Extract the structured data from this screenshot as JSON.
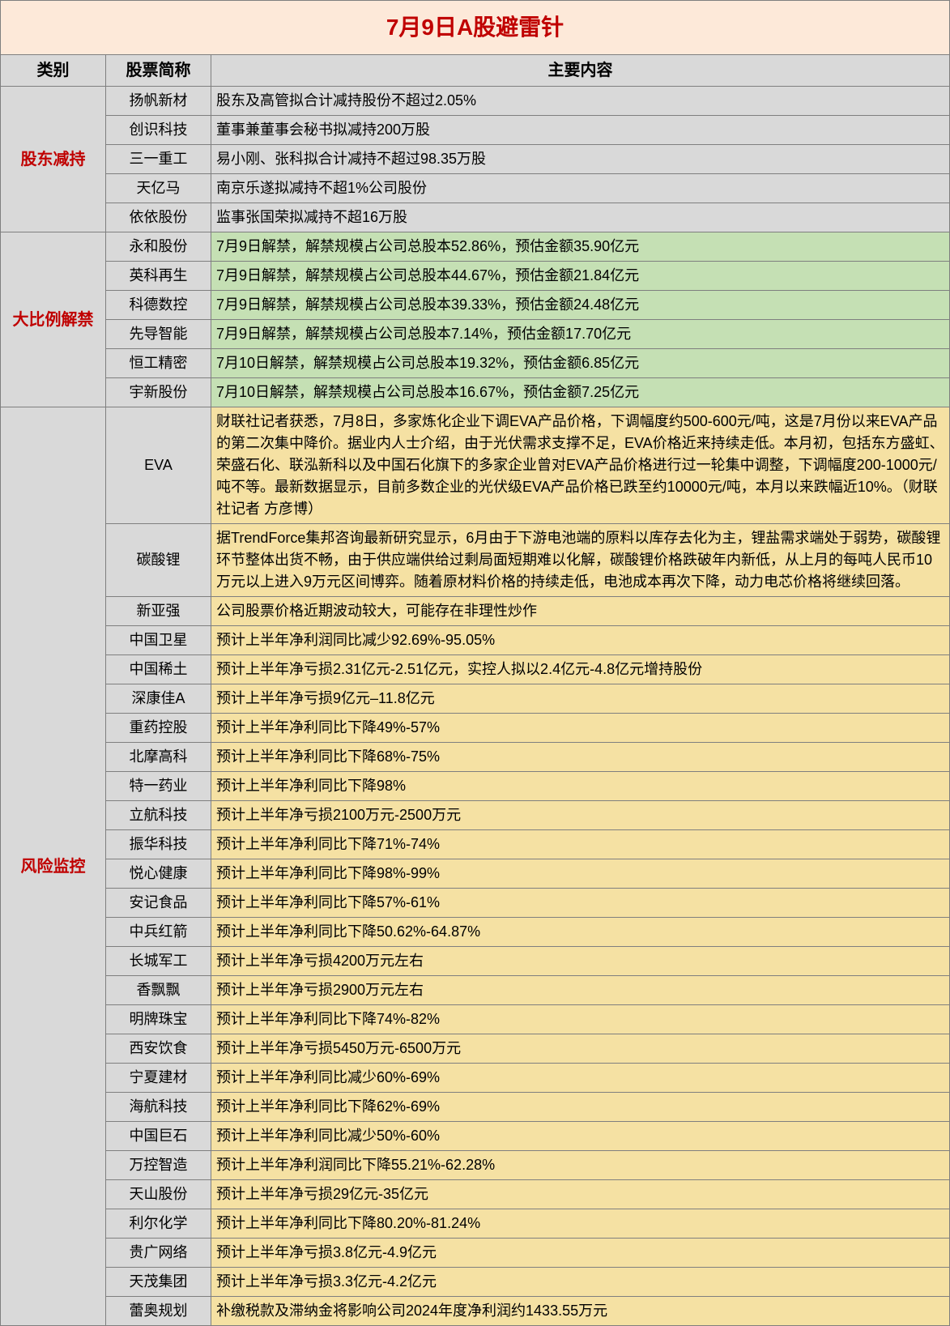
{
  "title": "7月9日A股避雷针",
  "headers": {
    "category": "类别",
    "stock": "股票简称",
    "content": "主要内容"
  },
  "colors": {
    "title_bg": "#fde9d9",
    "title_fg": "#c00000",
    "header_bg": "#d9d9d9",
    "cat_fg": "#c00000",
    "row_gray": "#d9d9d9",
    "row_green": "#c5e0b4",
    "row_tan": "#f5e1a3",
    "border": "#7f7f7f"
  },
  "fonts": {
    "title_size": 28,
    "header_size": 20,
    "body_size": 18
  },
  "sections": [
    {
      "category": "股东减持",
      "bg": "gray",
      "rows": [
        {
          "stock": "扬帆新材",
          "content": "股东及高管拟合计减持股份不超过2.05%"
        },
        {
          "stock": "创识科技",
          "content": "董事兼董事会秘书拟减持200万股"
        },
        {
          "stock": "三一重工",
          "content": "易小刚、张科拟合计减持不超过98.35万股"
        },
        {
          "stock": "天亿马",
          "content": "南京乐遂拟减持不超1%公司股份"
        },
        {
          "stock": "依依股份",
          "content": "监事张国荣拟减持不超16万股"
        }
      ]
    },
    {
      "category": "大比例解禁",
      "bg": "green",
      "rows": [
        {
          "stock": "永和股份",
          "content": "7月9日解禁，解禁规模占公司总股本52.86%，预估金额35.90亿元"
        },
        {
          "stock": "英科再生",
          "content": "7月9日解禁，解禁规模占公司总股本44.67%，预估金额21.84亿元"
        },
        {
          "stock": "科德数控",
          "content": "7月9日解禁，解禁规模占公司总股本39.33%，预估金额24.48亿元"
        },
        {
          "stock": "先导智能",
          "content": "7月9日解禁，解禁规模占公司总股本7.14%，预估金额17.70亿元"
        },
        {
          "stock": "恒工精密",
          "content": "7月10日解禁，解禁规模占公司总股本19.32%，预估金额6.85亿元"
        },
        {
          "stock": "宇新股份",
          "content": "7月10日解禁，解禁规模占公司总股本16.67%，预估金额7.25亿元"
        }
      ]
    },
    {
      "category": "风险监控",
      "bg": "tan",
      "rows": [
        {
          "stock": "EVA",
          "content": "财联社记者获悉，7月8日，多家炼化企业下调EVA产品价格，下调幅度约500-600元/吨，这是7月份以来EVA产品的第二次集中降价。据业内人士介绍，由于光伏需求支撑不足，EVA价格近来持续走低。本月初，包括东方盛虹、荣盛石化、联泓新科以及中国石化旗下的多家企业曾对EVA产品价格进行过一轮集中调整，下调幅度200-1000元/吨不等。最新数据显示，目前多数企业的光伏级EVA产品价格已跌至约10000元/吨，本月以来跌幅近10%。（财联社记者 方彦博）"
        },
        {
          "stock": "碳酸锂",
          "content": "据TrendForce集邦咨询最新研究显示，6月由于下游电池端的原料以库存去化为主，锂盐需求端处于弱势，碳酸锂环节整体出货不畅，由于供应端供给过剩局面短期难以化解，碳酸锂价格跌破年内新低，从上月的每吨人民币10万元以上进入9万元区间博弈。随着原材料价格的持续走低，电池成本再次下降，动力电芯价格将继续回落。"
        },
        {
          "stock": "新亚强",
          "content": "公司股票价格近期波动较大，可能存在非理性炒作"
        },
        {
          "stock": "中国卫星",
          "content": "预计上半年净利润同比减少92.69%-95.05%"
        },
        {
          "stock": "中国稀土",
          "content": "预计上半年净亏损2.31亿元-2.51亿元，实控人拟以2.4亿元-4.8亿元增持股份"
        },
        {
          "stock": "深康佳A",
          "content": "预计上半年净亏损9亿元–11.8亿元"
        },
        {
          "stock": "重药控股",
          "content": "预计上半年净利同比下降49%-57%"
        },
        {
          "stock": "北摩高科",
          "content": "预计上半年净利同比下降68%-75%"
        },
        {
          "stock": "特一药业",
          "content": "预计上半年净利同比下降98%"
        },
        {
          "stock": "立航科技",
          "content": "预计上半年净亏损2100万元-2500万元"
        },
        {
          "stock": "振华科技",
          "content": "预计上半年净利同比下降71%-74%"
        },
        {
          "stock": "悦心健康",
          "content": "预计上半年净利同比下降98%-99%"
        },
        {
          "stock": "安记食品",
          "content": "预计上半年净利同比下降57%-61%"
        },
        {
          "stock": "中兵红箭",
          "content": "预计上半年净利同比下降50.62%-64.87%"
        },
        {
          "stock": "长城军工",
          "content": "预计上半年净亏损4200万元左右"
        },
        {
          "stock": "香飘飘",
          "content": "预计上半年净亏损2900万元左右"
        },
        {
          "stock": "明牌珠宝",
          "content": "预计上半年净利同比下降74%-82%"
        },
        {
          "stock": "西安饮食",
          "content": "预计上半年净亏损5450万元-6500万元"
        },
        {
          "stock": "宁夏建材",
          "content": "预计上半年净利同比减少60%-69%"
        },
        {
          "stock": "海航科技",
          "content": "预计上半年净利同比下降62%-69%"
        },
        {
          "stock": "中国巨石",
          "content": "预计上半年净利同比减少50%-60%"
        },
        {
          "stock": "万控智造",
          "content": "预计上半年净利润同比下降55.21%-62.28%"
        },
        {
          "stock": "天山股份",
          "content": "预计上半年净亏损29亿元-35亿元"
        },
        {
          "stock": "利尔化学",
          "content": "预计上半年净利同比下降80.20%-81.24%"
        },
        {
          "stock": "贵广网络",
          "content": "预计上半年净亏损3.8亿元-4.9亿元"
        },
        {
          "stock": "天茂集团",
          "content": "预计上半年净亏损3.3亿元-4.2亿元"
        },
        {
          "stock": "蕾奥规划",
          "content": "补缴税款及滞纳金将影响公司2024年度净利润约1433.55万元"
        }
      ]
    }
  ]
}
